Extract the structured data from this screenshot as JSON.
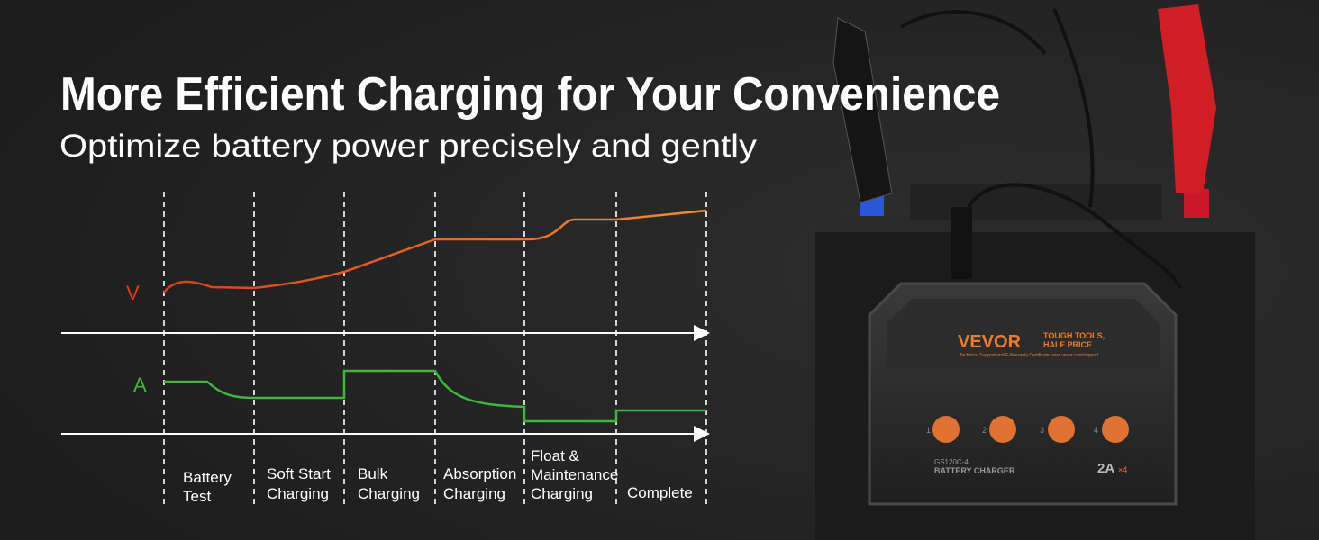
{
  "header": {
    "title": "More Efficient Charging for Your Convenience",
    "subtitle": "Optimize battery power precisely and gently"
  },
  "diagram": {
    "voltage_label": "V",
    "current_label": "A",
    "stages": [
      [
        "Battery",
        "Test"
      ],
      [
        "Soft Start",
        "Charging"
      ],
      [
        "Bulk",
        "Charging"
      ],
      [
        "Absorption",
        "Charging"
      ],
      [
        "Float &",
        "Maintenance",
        "Charging"
      ],
      [
        "Complete"
      ]
    ]
  },
  "device": {
    "brand": "VEVOR",
    "slogan": [
      "TOUGH TOOLS,",
      "HALF PRICE"
    ],
    "support": "Technical Support and E-Warranty Certificate www.vevor.com/support",
    "model": "GS120C-4",
    "name": "BATTERY CHARGER",
    "rating": "2A",
    "multiplier": "×4",
    "channels": [
      "1",
      "2",
      "3",
      "4"
    ]
  }
}
